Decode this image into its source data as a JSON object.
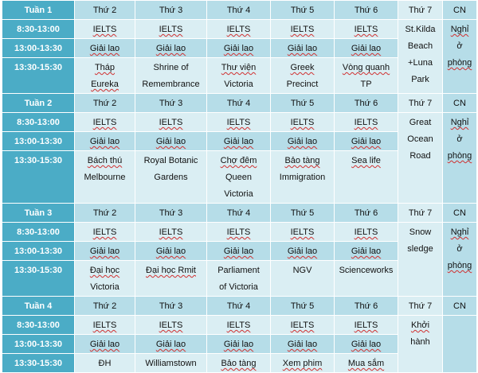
{
  "weeks": [
    {
      "label": "Tuần 1",
      "days": [
        "Thứ 2",
        "Thứ 3",
        "Thứ 4",
        "Thứ 5",
        "Thứ 6",
        "Thứ 7",
        "CN"
      ],
      "times": [
        "8:30-13:00",
        "13:00-13:30",
        "13:30-15:30"
      ],
      "morning": [
        "IELTS",
        "IELTS",
        "IELTS",
        "IELTS",
        "IELTS"
      ],
      "break": [
        "Giải lao",
        "Giải lao",
        "Giải lao",
        "Giải lao",
        "Giải lao"
      ],
      "afternoon": [
        [
          "Tháp",
          "Eureka"
        ],
        [
          "Shrine of",
          "Remembrance"
        ],
        [
          "Thư viện",
          "Victoria"
        ],
        [
          "Greek",
          "Precinct"
        ],
        [
          "Vòng quanh",
          "TP"
        ]
      ],
      "sat": [
        "St.Kilda",
        "Beach",
        "+Luna",
        "Park"
      ],
      "sun": [
        "Nghỉ",
        "ở",
        "phòng"
      ]
    },
    {
      "label": "Tuần 2",
      "days": [
        "Thứ 2",
        "Thứ 3",
        "Thứ 4",
        "Thứ 5",
        "Thứ 6",
        "Thứ 7",
        "CN"
      ],
      "times": [
        "8:30-13:00",
        "13:00-13:30",
        "13:30-15:30"
      ],
      "morning": [
        "IELTS",
        "IELTS",
        "IELTS",
        "IELTS",
        "IELTS"
      ],
      "break": [
        "Giải lao",
        "Giải lao",
        "Giải lao",
        "Giải lao",
        "Giải lao"
      ],
      "afternoon": [
        [
          "Bách thú",
          "Melbourne"
        ],
        [
          "Royal Botanic",
          "Gardens"
        ],
        [
          "Chợ đêm",
          "Queen",
          "Victoria"
        ],
        [
          "Bảo tàng",
          "Immigration"
        ],
        [
          "Sea life"
        ]
      ],
      "sat": [
        "Great",
        "Ocean",
        "Road"
      ],
      "sun": [
        "Nghỉ",
        "ở",
        "phòng"
      ]
    },
    {
      "label": "Tuần 3",
      "days": [
        "Thứ 2",
        "Thứ 3",
        "Thứ 4",
        "Thứ 5",
        "Thứ 6",
        "Thứ 7",
        "CN"
      ],
      "times": [
        "8:30-13:00",
        "13:00-13:30",
        "13:30-15:30"
      ],
      "morning": [
        "IELTS",
        "IELTS",
        "IELTS",
        "IELTS",
        "IELTS"
      ],
      "break": [
        "Giải lao",
        "Giải lao",
        "Giải lao",
        "Giải lao",
        "Giải lao"
      ],
      "afternoon": [
        [
          "Đại học",
          "Victoria"
        ],
        [
          "Đại học Rmit"
        ],
        [
          "Parliament",
          "of Victoria"
        ],
        [
          "NGV"
        ],
        [
          "Scienceworks"
        ]
      ],
      "sat": [
        "Snow",
        "sledge"
      ],
      "sun": [
        "Nghỉ",
        "ở",
        "phòng"
      ]
    },
    {
      "label": "Tuần 4",
      "days": [
        "Thứ 2",
        "Thứ 3",
        "Thứ 4",
        "Thứ 5",
        "Thứ 6",
        "Thứ 7",
        "CN"
      ],
      "times": [
        "8:30-13:00",
        "13:00-13:30",
        "13:30-15:30"
      ],
      "morning": [
        "IELTS",
        "IELTS",
        "IELTS",
        "IELTS",
        "IELTS"
      ],
      "break": [
        "Giải lao",
        "Giải lao",
        "Giải lao",
        "Giải lao",
        "Giải lao"
      ],
      "afternoon": [
        [
          "ĐH"
        ],
        [
          "Williamstown"
        ],
        [
          "Bảo tàng"
        ],
        [
          "Xem phim"
        ],
        [
          "Mua sắm"
        ]
      ],
      "sat": [
        "Khởi",
        "hành"
      ],
      "sun": []
    }
  ]
}
